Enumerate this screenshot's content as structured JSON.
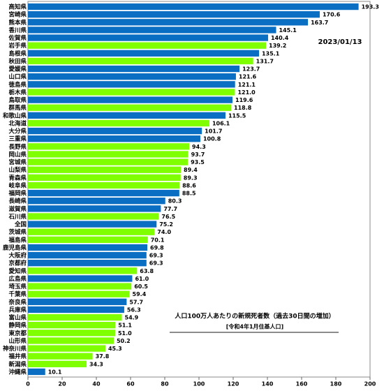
{
  "chart_data": {
    "type": "hbar",
    "categories": [
      "高知県",
      "宮崎県",
      "熊本県",
      "香川県",
      "佐賀県",
      "岩手県",
      "島根県",
      "秋田県",
      "愛媛県",
      "山口県",
      "徳島県",
      "栃木県",
      "鳥取県",
      "群馬県",
      "和歌山県",
      "北海道",
      "大分県",
      "三重県",
      "長野県",
      "岡山県",
      "宮城県",
      "山梨県",
      "青森県",
      "岐阜県",
      "福岡県",
      "長崎県",
      "滋賀県",
      "石川県",
      "全国",
      "茨城県",
      "福島県",
      "鹿児島県",
      "大阪府",
      "京都府",
      "愛知県",
      "広島県",
      "埼玉県",
      "千葉県",
      "奈良県",
      "兵庫県",
      "富山県",
      "静岡県",
      "東京都",
      "山形県",
      "神奈川県",
      "福井県",
      "新潟県",
      "沖縄県"
    ],
    "values": [
      193.3,
      170.6,
      163.7,
      145.1,
      140.4,
      139.2,
      135.1,
      131.7,
      123.7,
      121.6,
      121.1,
      121.0,
      119.6,
      118.8,
      115.5,
      106.1,
      101.7,
      100.8,
      94.3,
      93.7,
      93.5,
      89.4,
      89.3,
      88.6,
      88.5,
      80.3,
      77.7,
      76.5,
      75.2,
      74.0,
      70.1,
      69.8,
      69.3,
      69.3,
      63.8,
      61.0,
      60.5,
      59.4,
      57.7,
      56.3,
      54.9,
      51.1,
      51.0,
      50.2,
      45.3,
      37.8,
      34.3,
      10.1
    ],
    "value_labels": [
      "193.3",
      "170.6",
      "163.7",
      "145.1",
      "140.4",
      "139.2",
      "135.1",
      "131.7",
      "123.7",
      "121.6",
      "121.1",
      "121.0",
      "119.6",
      "118.8",
      "115.5",
      "106.1",
      "101.7",
      "100.8",
      "94.3",
      "93.7",
      "93.5",
      "89.4",
      "89.3",
      "88.6",
      "88.5",
      "80.3",
      "77.7",
      "76.5",
      "75.2",
      "74.0",
      "70.1",
      "69.8",
      "69.3",
      "69.3",
      "63.8",
      "61.0",
      "60.5",
      "59.4",
      "57.7",
      "56.3",
      "54.9",
      "51.1",
      "51.0",
      "50.2",
      "45.3",
      "37.8",
      "34.3",
      "10.1"
    ],
    "colors": [
      "#0a6fc2",
      "#0a6fc2",
      "#0a6fc2",
      "#0a6fc2",
      "#0a6fc2",
      "#7fff00",
      "#0a6fc2",
      "#7fff00",
      "#0a6fc2",
      "#0a6fc2",
      "#0a6fc2",
      "#7fff00",
      "#0a6fc2",
      "#7fff00",
      "#0a6fc2",
      "#7fff00",
      "#0a6fc2",
      "#0a6fc2",
      "#7fff00",
      "#7fff00",
      "#7fff00",
      "#7fff00",
      "#7fff00",
      "#7fff00",
      "#0a6fc2",
      "#0a6fc2",
      "#0a6fc2",
      "#7fff00",
      "#0a6fc2",
      "#7fff00",
      "#7fff00",
      "#0a6fc2",
      "#0a6fc2",
      "#0a6fc2",
      "#7fff00",
      "#0a6fc2",
      "#7fff00",
      "#7fff00",
      "#0a6fc2",
      "#0a6fc2",
      "#7fff00",
      "#7fff00",
      "#7fff00",
      "#7fff00",
      "#7fff00",
      "#7fff00",
      "#7fff00",
      "#0a6fc2"
    ],
    "xlim": [
      0,
      200
    ],
    "xticks": [
      0,
      20,
      40,
      60,
      80,
      100,
      120,
      140,
      160,
      180,
      200
    ],
    "grid": false,
    "annotations": [
      "2023/01/13",
      "人口100万人あたりの新規死者数（過去30日間の増加）",
      "[令和4年1月住基人口]"
    ]
  }
}
